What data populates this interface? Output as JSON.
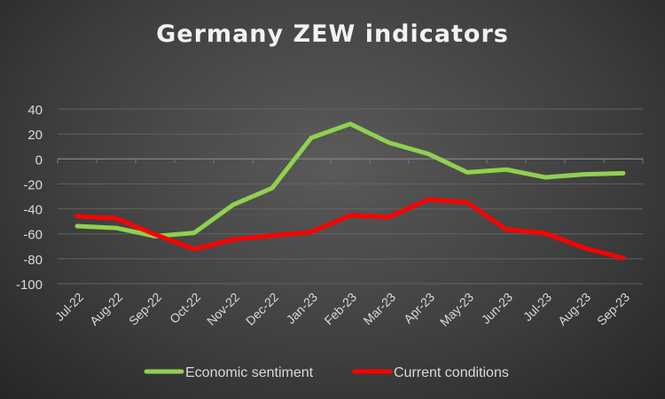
{
  "chart_data": {
    "type": "line",
    "title": "Germany ZEW indicators",
    "categories": [
      "Jul-22",
      "Aug-22",
      "Sep-22",
      "Oct-22",
      "Nov-22",
      "Dec-22",
      "Jan-23",
      "Feb-23",
      "Mar-23",
      "Apr-23",
      "May-23",
      "Jun-23",
      "Jul-23",
      "Aug-23",
      "Sep-23"
    ],
    "ylim": [
      -100,
      40
    ],
    "yticks": [
      40,
      20,
      0,
      -20,
      -40,
      -60,
      -80,
      -100
    ],
    "grid": true,
    "legend": "bottom",
    "series": [
      {
        "name": "Economic sentiment",
        "color": "#8fd14f",
        "values": [
          -53.8,
          -55.3,
          -61.9,
          -59.2,
          -36.7,
          -23.3,
          16.9,
          28.1,
          13.0,
          4.1,
          -10.7,
          -8.5,
          -14.7,
          -12.3,
          -11.4
        ]
      },
      {
        "name": "Current conditions",
        "color": "#ff0000",
        "values": [
          -45.8,
          -47.6,
          -60.5,
          -72.2,
          -64.5,
          -61.4,
          -58.6,
          -45.1,
          -46.5,
          -32.5,
          -34.8,
          -56.5,
          -59.5,
          -71.3,
          -79.4
        ]
      }
    ]
  }
}
